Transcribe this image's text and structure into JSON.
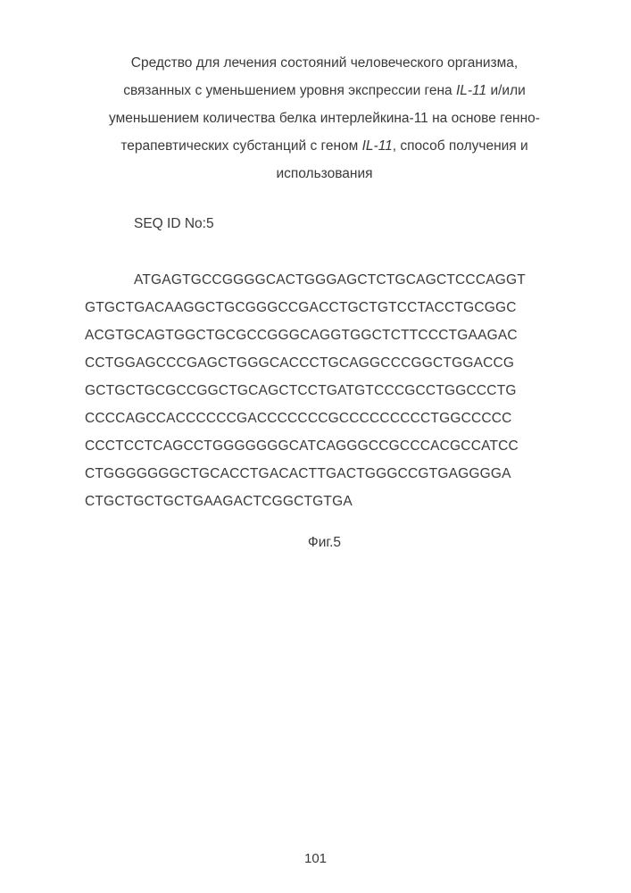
{
  "title": {
    "line1_pre": "Средство для лечения состояний человеческого организма,",
    "line2_pre": "связанных с уменьшением уровня экспрессии гена ",
    "line2_italic": "IL-11",
    "line2_post": " и/или",
    "line3_pre": "уменьшением количества белка интерлейкина-11 на основе генно-",
    "line4_pre": "терапевтических субстанций с геном ",
    "line4_italic": "IL-11",
    "line4_post": ", способ получения и",
    "line5": "использования"
  },
  "seq_label": "SEQ ID No:5",
  "sequence_lines": {
    "l1": "ATGAGTGCCGGGGCACTGGGAGCTCTGCAGCTCCCAGGT",
    "l2": "GTGCTGACAAGGCTGCGGGCCGACCTGCTGTCCTACCTGCGGC",
    "l3": "ACGTGCAGTGGCTGCGCCGGGCAGGTGGCTCTTCCCTGAAGAC",
    "l4": "CCTGGAGCCCGAGCTGGGCACCCTGCAGGCCCGGCTGGACCG",
    "l5": "GCTGCTGCGCCGGCTGCAGCTCCTGATGTCCCGCCTGGCCCTG",
    "l6": "CCCCAGCCACCCCCCGACCCCCCCGCCCCCCCCCTGGCCCCC",
    "l7": "CCCTCCTCAGCCTGGGGGGGCATCAGGGCCGCCCACGCCATCC",
    "l8": "CTGGGGGGGCTGCACCTGACACTTGACTGGGCCGTGAGGGGA",
    "l9": "CTGCTGCTGCTGAAGACTCGGCTGTGA"
  },
  "figure_caption": "Фиг.5",
  "page_number": "101"
}
